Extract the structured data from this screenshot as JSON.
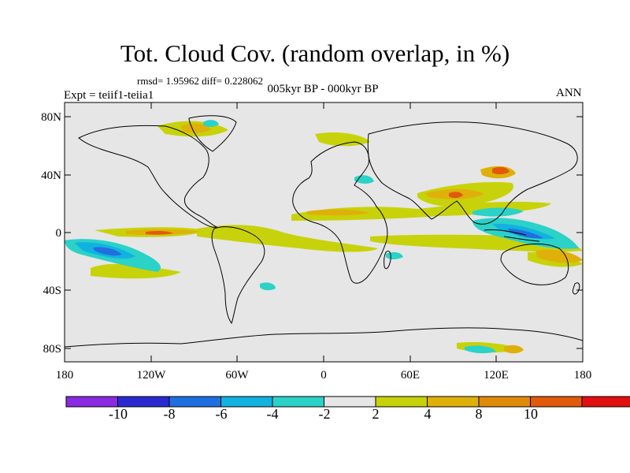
{
  "title": "Tot. Cloud Cov. (random overlap, in %)",
  "stats": "rmsd= 1.95962  diff= 0.228062",
  "experiment": "Expt = teiif1-teiia1",
  "period": "005kyr BP - 000kyr BP",
  "season": "ANN",
  "map": {
    "lat_range": [
      -90,
      90
    ],
    "lon_range": [
      -180,
      180
    ],
    "lat_ticks": [
      "80N",
      "40N",
      "0",
      "40S",
      "80S"
    ],
    "lon_ticks": [
      "180",
      "120W",
      "60W",
      "0",
      "60E",
      "120E",
      "180"
    ],
    "background_color": "#e6e6e6"
  },
  "colorbar": {
    "colors": [
      "#8a2be2",
      "#2a2ad0",
      "#1f6fe0",
      "#12b2e0",
      "#2ad2c8",
      "#e6e6e6",
      "#c8d20a",
      "#e0b00a",
      "#e08a0a",
      "#e05a0a",
      "#e01010"
    ],
    "labels": [
      "-10",
      "-8",
      "-6",
      "-4",
      "-2",
      "2",
      "4",
      "8",
      "10"
    ]
  }
}
